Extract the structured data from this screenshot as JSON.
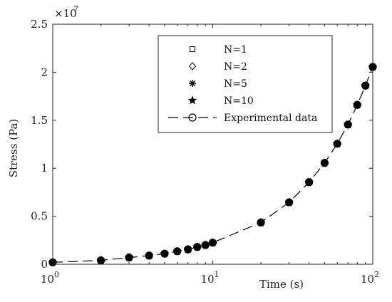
{
  "chart_data": {
    "type": "scatter",
    "xlabel": "Time (s)",
    "ylabel": "Stress (Pa)",
    "xscale": "log",
    "xlim": [
      1,
      100
    ],
    "ylim": [
      0,
      25000000.0
    ],
    "y_multiplier_label": "×10",
    "y_multiplier_exponent": "7",
    "x_tick_labels": [
      {
        "value": 1,
        "base": "10",
        "exp": "0"
      },
      {
        "value": 10,
        "base": "10",
        "exp": "1"
      },
      {
        "value": 100,
        "base": "10",
        "exp": "2"
      }
    ],
    "y_tick_labels": [
      {
        "value": 0,
        "label": "0"
      },
      {
        "value": 5000000,
        "label": "0.5"
      },
      {
        "value": 10000000,
        "label": "1"
      },
      {
        "value": 15000000,
        "label": "1.5"
      },
      {
        "value": 20000000,
        "label": "2"
      },
      {
        "value": 25000000,
        "label": "2.5"
      }
    ],
    "grid": false,
    "legend_position": "top-right",
    "x": [
      1,
      2,
      3,
      4,
      5,
      6,
      7,
      8,
      9,
      10,
      20,
      30,
      40,
      50,
      60,
      70,
      80,
      90,
      100
    ],
    "series": [
      {
        "name": "N=1",
        "marker": "square",
        "values": [
          200000,
          400000,
          700000,
          900000,
          1100000,
          1350000,
          1550000,
          1800000,
          2000000,
          2250000,
          4350000,
          6450000,
          8550000,
          10550000,
          12550000,
          14550000,
          16600000,
          18600000,
          20550000
        ]
      },
      {
        "name": "N=2",
        "marker": "diamond",
        "values": [
          200000,
          400000,
          700000,
          900000,
          1100000,
          1350000,
          1550000,
          1800000,
          2000000,
          2250000,
          4350000,
          6450000,
          8550000,
          10550000,
          12550000,
          14550000,
          16600000,
          18600000,
          20550000
        ]
      },
      {
        "name": "N=5",
        "marker": "asterisk",
        "values": [
          200000,
          400000,
          700000,
          900000,
          1100000,
          1350000,
          1550000,
          1800000,
          2000000,
          2250000,
          4350000,
          6450000,
          8550000,
          10550000,
          12550000,
          14550000,
          16600000,
          18600000,
          20550000
        ]
      },
      {
        "name": "N=10",
        "marker": "star",
        "values": [
          200000,
          400000,
          700000,
          900000,
          1100000,
          1350000,
          1550000,
          1800000,
          2000000,
          2250000,
          4350000,
          6450000,
          8550000,
          10550000,
          12550000,
          14550000,
          16600000,
          18600000,
          20550000
        ]
      },
      {
        "name": "Experimental data",
        "marker": "circle",
        "line": "dashed",
        "values": [
          200000,
          400000,
          700000,
          900000,
          1100000,
          1350000,
          1550000,
          1800000,
          2000000,
          2250000,
          4350000,
          6450000,
          8550000,
          10550000,
          12550000,
          14550000,
          16600000,
          18600000,
          20550000
        ]
      }
    ]
  }
}
